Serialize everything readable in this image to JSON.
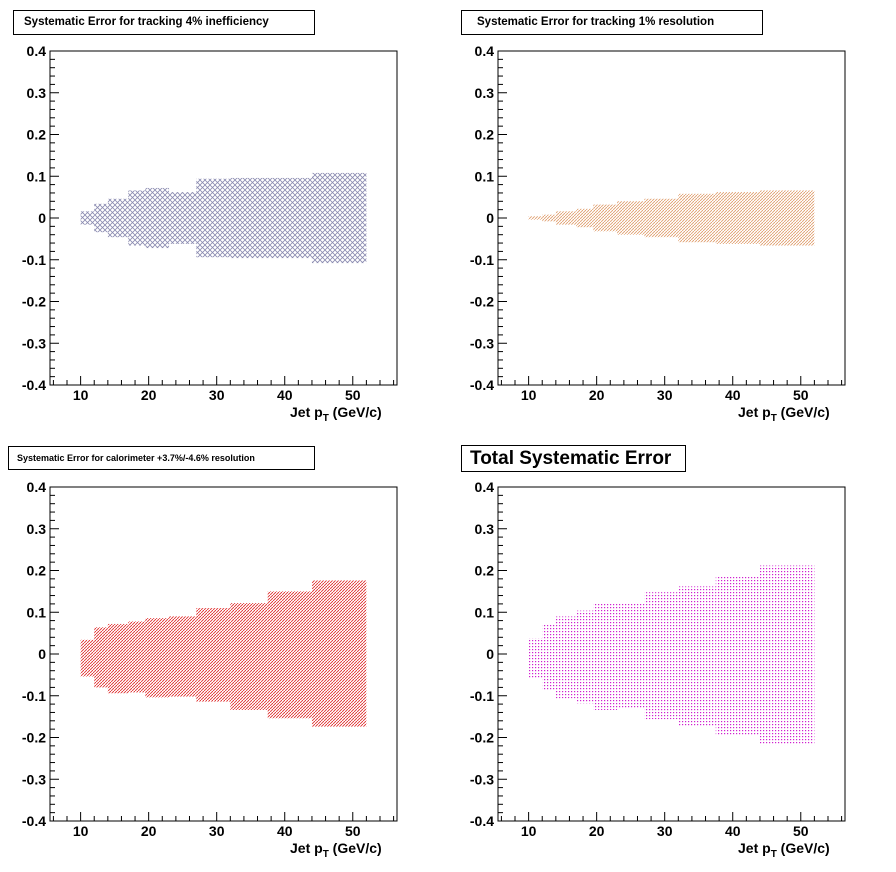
{
  "chart_data": [
    {
      "type": "area",
      "title": "Systematic Error for tracking 4% inefficiency",
      "xlabel_main": "Jet p",
      "xlabel_sub": "T",
      "xlabel_unit": " (GeV/c)",
      "xlim": [
        5.5,
        56.5
      ],
      "ylim": [
        -0.4,
        0.4
      ],
      "xticks": [
        10,
        20,
        30,
        40,
        50
      ],
      "yticks": [
        -0.4,
        -0.3,
        -0.2,
        -0.1,
        0,
        0.1,
        0.2,
        0.3,
        0.4
      ],
      "ytick_labels": [
        "-0.4",
        "-0.3",
        "-0.2",
        "-0.1",
        "0",
        "0.1",
        "0.2",
        "0.3",
        "0.4"
      ],
      "fill_color": "#8a8ab0",
      "fill_pattern": "crosshatch",
      "bins": [
        {
          "lo": 10,
          "hi": 12,
          "up": 0.016,
          "down": -0.016
        },
        {
          "lo": 12,
          "hi": 14,
          "up": 0.034,
          "down": -0.034
        },
        {
          "lo": 14,
          "hi": 17,
          "up": 0.046,
          "down": -0.046
        },
        {
          "lo": 17,
          "hi": 19.5,
          "up": 0.066,
          "down": -0.066
        },
        {
          "lo": 19.5,
          "hi": 23,
          "up": 0.072,
          "down": -0.072
        },
        {
          "lo": 23,
          "hi": 27,
          "up": 0.062,
          "down": -0.062
        },
        {
          "lo": 27,
          "hi": 32,
          "up": 0.094,
          "down": -0.094
        },
        {
          "lo": 32,
          "hi": 37.5,
          "up": 0.096,
          "down": -0.096
        },
        {
          "lo": 37.5,
          "hi": 44,
          "up": 0.096,
          "down": -0.096
        },
        {
          "lo": 44,
          "hi": 52,
          "up": 0.108,
          "down": -0.108
        }
      ]
    },
    {
      "type": "area",
      "title": "Systematic Error for tracking 1% resolution",
      "xlabel_main": "Jet p",
      "xlabel_sub": "T",
      "xlabel_unit": " (GeV/c)",
      "xlim": [
        5.5,
        56.5
      ],
      "ylim": [
        -0.4,
        0.4
      ],
      "xticks": [
        10,
        20,
        30,
        40,
        50
      ],
      "yticks": [
        -0.4,
        -0.3,
        -0.2,
        -0.1,
        0,
        0.1,
        0.2,
        0.3,
        0.4
      ],
      "ytick_labels": [
        "-0.4",
        "-0.3",
        "-0.2",
        "-0.1",
        "0",
        "0.1",
        "0.2",
        "0.3",
        "0.4"
      ],
      "fill_color": "#e0a070",
      "fill_pattern": "diagonal",
      "bins": [
        {
          "lo": 10,
          "hi": 12,
          "up": 0.004,
          "down": -0.004
        },
        {
          "lo": 12,
          "hi": 14,
          "up": 0.008,
          "down": -0.008
        },
        {
          "lo": 14,
          "hi": 17,
          "up": 0.016,
          "down": -0.016
        },
        {
          "lo": 17,
          "hi": 19.5,
          "up": 0.022,
          "down": -0.022
        },
        {
          "lo": 19.5,
          "hi": 23,
          "up": 0.032,
          "down": -0.032
        },
        {
          "lo": 23,
          "hi": 27,
          "up": 0.04,
          "down": -0.04
        },
        {
          "lo": 27,
          "hi": 32,
          "up": 0.046,
          "down": -0.046
        },
        {
          "lo": 32,
          "hi": 37.5,
          "up": 0.058,
          "down": -0.058
        },
        {
          "lo": 37.5,
          "hi": 44,
          "up": 0.062,
          "down": -0.062
        },
        {
          "lo": 44,
          "hi": 52,
          "up": 0.066,
          "down": -0.066
        }
      ]
    },
    {
      "type": "area",
      "title": "Systematic Error for calorimeter +3.7%/-4.6% resolution",
      "xlabel_main": "Jet p",
      "xlabel_sub": "T",
      "xlabel_unit": " (GeV/c)",
      "xlim": [
        5.5,
        56.5
      ],
      "ylim": [
        -0.4,
        0.4
      ],
      "xticks": [
        10,
        20,
        30,
        40,
        50
      ],
      "yticks": [
        -0.4,
        -0.3,
        -0.2,
        -0.1,
        0,
        0.1,
        0.2,
        0.3,
        0.4
      ],
      "ytick_labels": [
        "-0.4",
        "-0.3",
        "-0.2",
        "-0.1",
        "0",
        "0.1",
        "0.2",
        "0.3",
        "0.4"
      ],
      "fill_color": "#e03030",
      "fill_pattern": "diagonal",
      "bins": [
        {
          "lo": 10,
          "hi": 12,
          "up": 0.034,
          "down": -0.054
        },
        {
          "lo": 12,
          "hi": 14,
          "up": 0.064,
          "down": -0.08
        },
        {
          "lo": 14,
          "hi": 17,
          "up": 0.072,
          "down": -0.094
        },
        {
          "lo": 17,
          "hi": 19.5,
          "up": 0.078,
          "down": -0.092
        },
        {
          "lo": 19.5,
          "hi": 23,
          "up": 0.086,
          "down": -0.104
        },
        {
          "lo": 23,
          "hi": 27,
          "up": 0.09,
          "down": -0.102
        },
        {
          "lo": 27,
          "hi": 32,
          "up": 0.11,
          "down": -0.114
        },
        {
          "lo": 32,
          "hi": 37.5,
          "up": 0.122,
          "down": -0.134
        },
        {
          "lo": 37.5,
          "hi": 44,
          "up": 0.15,
          "down": -0.154
        },
        {
          "lo": 44,
          "hi": 52,
          "up": 0.176,
          "down": -0.174
        }
      ]
    },
    {
      "type": "area",
      "title": "Total Systematic Error",
      "xlabel_main": "Jet p",
      "xlabel_sub": "T",
      "xlabel_unit": " (GeV/c)",
      "xlim": [
        5.5,
        56.5
      ],
      "ylim": [
        -0.4,
        0.4
      ],
      "xticks": [
        10,
        20,
        30,
        40,
        50
      ],
      "yticks": [
        -0.4,
        -0.3,
        -0.2,
        -0.1,
        0,
        0.1,
        0.2,
        0.3,
        0.4
      ],
      "ytick_labels": [
        "-0.4",
        "-0.3",
        "-0.2",
        "-0.1",
        "0",
        "0.1",
        "0.2",
        "0.3",
        "0.4"
      ],
      "fill_color": "#d020d0",
      "fill_pattern": "dots",
      "bins": [
        {
          "lo": 10,
          "hi": 12,
          "up": 0.038,
          "down": -0.058
        },
        {
          "lo": 12,
          "hi": 14,
          "up": 0.07,
          "down": -0.088
        },
        {
          "lo": 14,
          "hi": 17,
          "up": 0.09,
          "down": -0.106
        },
        {
          "lo": 17,
          "hi": 19.5,
          "up": 0.104,
          "down": -0.118
        },
        {
          "lo": 19.5,
          "hi": 23,
          "up": 0.12,
          "down": -0.134
        },
        {
          "lo": 23,
          "hi": 27,
          "up": 0.12,
          "down": -0.13
        },
        {
          "lo": 27,
          "hi": 32,
          "up": 0.148,
          "down": -0.156
        },
        {
          "lo": 32,
          "hi": 37.5,
          "up": 0.162,
          "down": -0.174
        },
        {
          "lo": 37.5,
          "hi": 44,
          "up": 0.186,
          "down": -0.196
        },
        {
          "lo": 44,
          "hi": 52,
          "up": 0.212,
          "down": -0.218
        }
      ]
    }
  ]
}
